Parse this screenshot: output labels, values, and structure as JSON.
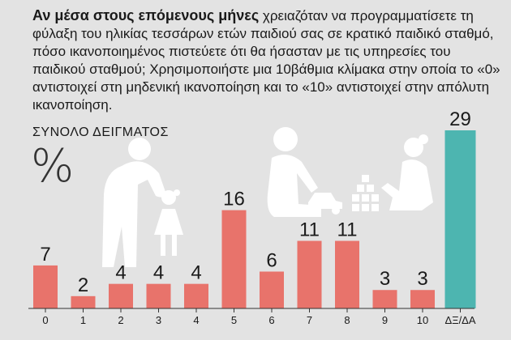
{
  "question": {
    "lead": "Αν μέσα στους επόμενους μήνες",
    "rest": " χρειαζόταν να προγραμματίσετε τη φύλαξη του ηλικίας τεσσάρων ετών παιδιού σας σε κρατικό παιδικό σταθμό, πόσο ικανοποιημένος πιστεύετε ότι θα ήσασταν με τις υπηρεσίες του παιδικού σταθμού; Χρησιμοποιήστε μια 10βάθμια κλίμακα στην οποία το «0» αντιστοιχεί στη μηδενική ικανοποίηση και το «10» αντιστοιχεί στην απόλυτη ικανοποίηση."
  },
  "sample_label": "ΣΥΝΟΛΟ ΔΕΙΓΜΑΤΟΣ",
  "unit_symbol": "%",
  "colors": {
    "background": "#e3e3e3",
    "bar": "#e8736b",
    "highlight_bar": "#4db5b0",
    "silhouette": "#ffffff",
    "axis": "#333333"
  },
  "chart_data": {
    "type": "bar",
    "categories": [
      "0",
      "1",
      "2",
      "3",
      "4",
      "5",
      "6",
      "7",
      "8",
      "9",
      "10",
      "ΔΞ/ΔΑ"
    ],
    "values": [
      7,
      2,
      4,
      4,
      4,
      16,
      6,
      11,
      11,
      3,
      3,
      29
    ],
    "highlight_categories": [
      "ΔΞ/ΔΑ"
    ],
    "ylim": [
      0,
      29
    ],
    "grid": false,
    "title": "",
    "xlabel": "",
    "ylabel": ""
  }
}
